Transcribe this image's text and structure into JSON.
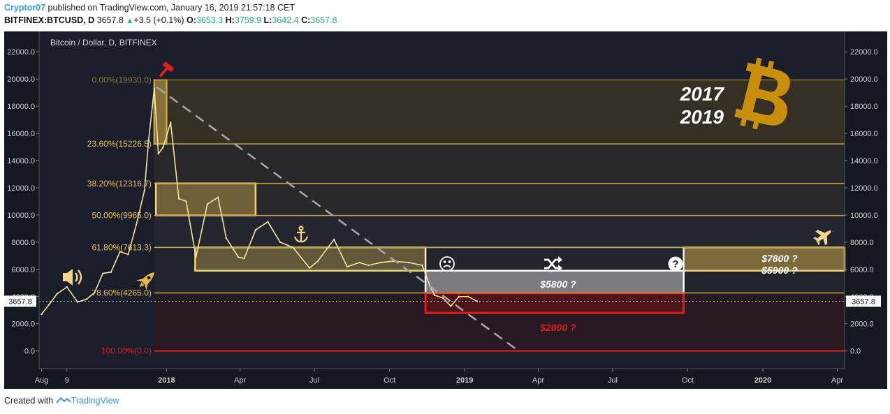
{
  "header": {
    "author": "Cryptor07",
    "published": "published on TradingView.com, January 16, 2019 21:57:18 CET",
    "symbol": "BITFINEX:BTCUSD, D",
    "price": "3657.8",
    "change_arrow": "▲",
    "change": "+3.5 (+0.1%)",
    "open_label": "O:",
    "open": "3653.3",
    "high_label": "H:",
    "high": "3759.9",
    "low_label": "L:",
    "low": "3642.4",
    "close_label": "C:",
    "close": "3657.8"
  },
  "footer": {
    "created_with": "Created with",
    "brand": "TradingView"
  },
  "colors": {
    "background": "#1b1e2a",
    "axis_bg": "#151821",
    "fib_line": "#c8a54a",
    "zone_fill": "#c8a54a",
    "red": "#d71f1f",
    "white": "#ffffff",
    "candle": "#f2e4a0"
  },
  "chart_data": {
    "type": "line",
    "title": "Bitcoin / Dollar, D, BITFINEX",
    "xlabel": "",
    "ylabel": "",
    "x_ticks": [
      "Aug",
      "9",
      "2018",
      "Apr",
      "Jul",
      "Oct",
      "2019",
      "Apr",
      "Jul",
      "Oct",
      "2020",
      "Apr"
    ],
    "x_range": [
      "2017-07-29",
      "2020-04-10"
    ],
    "y_ticks": [
      0,
      2000,
      4000,
      6000,
      8000,
      10000,
      12000,
      14000,
      16000,
      18000,
      20000,
      22000
    ],
    "y_tick_labels": [
      "0.0",
      "2000.0",
      "4000.0",
      "6000.0",
      "8000.0",
      "10000.0",
      "12000.0",
      "14000.0",
      "16000.0",
      "18000.0",
      "20000.0",
      "22000.0"
    ],
    "ylim": [
      -1300,
      23500
    ],
    "grid": false,
    "last_price": 3657.8,
    "last_price_label": "3657.8",
    "series": [
      {
        "type": "line",
        "x": [
          "2017-08-01",
          "2017-08-10",
          "2017-08-20",
          "2017-09-01",
          "2017-09-14",
          "2017-09-25",
          "2017-10-05",
          "2017-10-15",
          "2017-10-25",
          "2017-11-05",
          "2017-11-15",
          "2017-11-25",
          "2017-12-05",
          "2017-12-10",
          "2017-12-17",
          "2017-12-22",
          "2017-12-28",
          "2018-01-06",
          "2018-01-16",
          "2018-01-25",
          "2018-02-06",
          "2018-02-20",
          "2018-03-05",
          "2018-03-15",
          "2018-03-30",
          "2018-04-06",
          "2018-04-20",
          "2018-05-05",
          "2018-05-20",
          "2018-06-05",
          "2018-06-25",
          "2018-07-05",
          "2018-07-25",
          "2018-08-10",
          "2018-08-25",
          "2018-09-05",
          "2018-09-20",
          "2018-10-05",
          "2018-10-25",
          "2018-11-10",
          "2018-11-20",
          "2018-11-25",
          "2018-12-05",
          "2018-12-15",
          "2018-12-25",
          "2019-01-05",
          "2019-01-16"
        ],
        "values": [
          2700,
          3400,
          4200,
          4700,
          3600,
          3800,
          4300,
          5700,
          5800,
          7300,
          7100,
          9300,
          11800,
          15500,
          19300,
          14500,
          15000,
          16800,
          11200,
          11000,
          6900,
          10800,
          11300,
          8300,
          6900,
          6800,
          8900,
          9500,
          8000,
          7600,
          6100,
          6600,
          8200,
          6200,
          6500,
          6300,
          6500,
          6600,
          6500,
          6300,
          4700,
          4100,
          3900,
          3300,
          4000,
          4000,
          3657.8
        ]
      }
    ],
    "annotations": {
      "fib_levels": [
        {
          "label": "0.00%(19930.0)",
          "value": 19930.0
        },
        {
          "label": "23.60%(15226.5)",
          "value": 15226.5
        },
        {
          "label": "38.20%(12316.7)",
          "value": 12316.7
        },
        {
          "label": "50.00%(9965.0)",
          "value": 9965.0
        },
        {
          "label": "61.80%(7613.3)",
          "value": 7613.3
        },
        {
          "label": "78.60%(4265.0)",
          "value": 4265.0
        },
        {
          "label": "100.00%(0.0)",
          "value": 0.0
        }
      ],
      "fib_start": "2017-12-17",
      "zones": [
        {
          "x0": "2017-12-17",
          "x1": "2018-01-01",
          "y0": 15226.5,
          "y1": 19930
        },
        {
          "x0": "2017-12-19",
          "x1": "2018-04-20",
          "y0": 9965,
          "y1": 12316.7
        },
        {
          "x0": "2018-02-05",
          "x1": "2018-11-14",
          "y0": 5900,
          "y1": 7613.3
        },
        {
          "x0": "2018-11-14",
          "x1": "2019-09-26",
          "y0": 4265,
          "y1": 5900
        },
        {
          "x0": "2018-11-14",
          "x1": "2019-09-26",
          "y0": 2800,
          "y1": 4265
        },
        {
          "x0": "2019-09-26",
          "x1": "2020-04-10",
          "y0": 5900,
          "y1": 7613.3
        }
      ],
      "trendline": {
        "x0": "2017-12-20",
        "y0": 19400,
        "x1": "2019-03-08",
        "y1": 0
      },
      "text": {
        "years_line1": "2017",
        "years_line2": "2019",
        "target_5800": "$5800  ?",
        "target_2800": "$2800  ?",
        "target_7800": "$7800  ?",
        "target_5900": "$5900  ?"
      },
      "icons": [
        "hammer-icon",
        "speaker-icon",
        "rocket-icon",
        "anchor-icon",
        "sad-face-icon",
        "shuffle-icon",
        "question-icon",
        "airplane-icon",
        "bitcoin-logo-icon"
      ]
    }
  }
}
